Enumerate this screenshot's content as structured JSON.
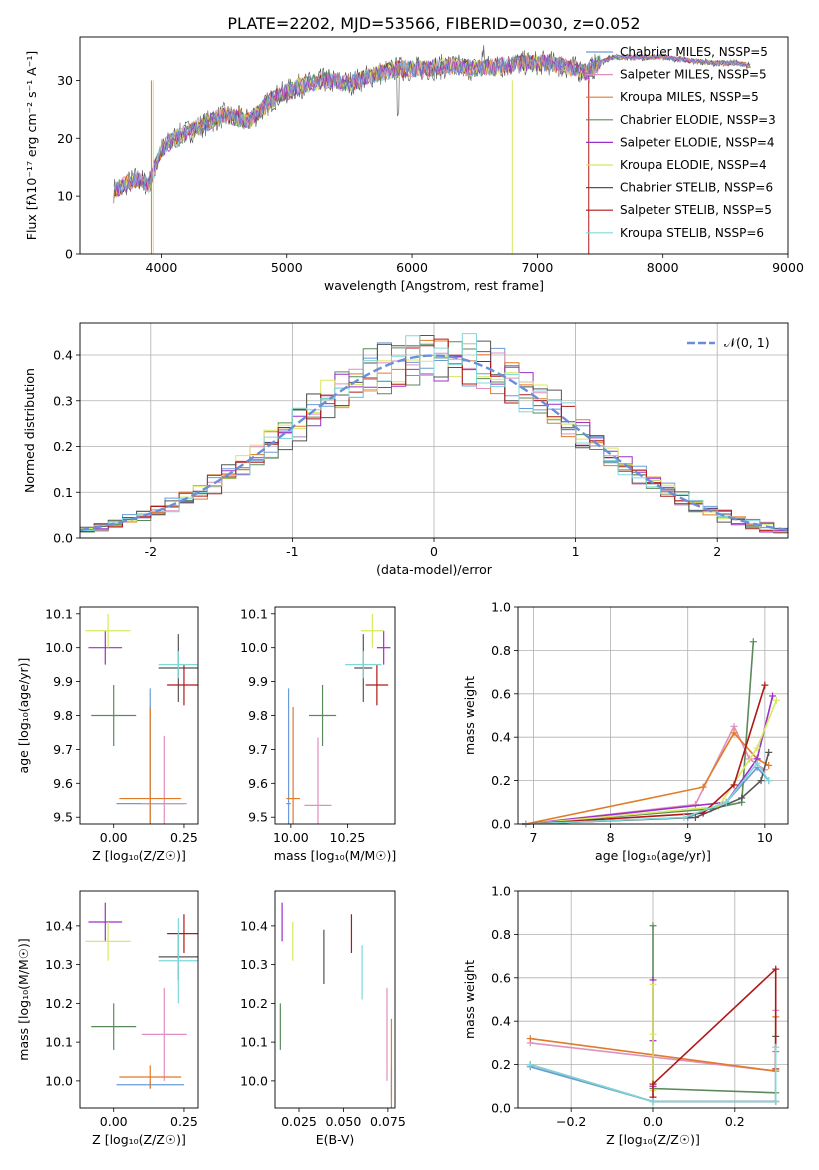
{
  "figure_title": "PLATE=2202, MJD=53566, FIBERID=0030, z=0.052",
  "colors": {
    "chabrier_miles": "#6a9bd8",
    "salpeter_miles": "#e08fc0",
    "kroupa_miles": "#e07b28",
    "chabrier_elodie": "#5a8a5a",
    "salpeter_elodie": "#9b30c8",
    "kroupa_elodie": "#d8e860",
    "chabrier_stelib": "#555555",
    "salpeter_stelib": "#b01818",
    "kroupa_stelib": "#7fd8d8",
    "gaussian": "#6a8fd8"
  },
  "chart_data": [
    {
      "id": "spectrum",
      "type": "line",
      "title": "PLATE=2202, MJD=53566, FIBERID=0030, z=0.052",
      "xlabel": "wavelength [Angstrom, rest frame]",
      "ylabel": "Flux [fλ10⁻¹⁷ erg cm⁻² s⁻¹ A⁻¹]",
      "xlim": [
        3350,
        9000
      ],
      "ylim": [
        0,
        37.5
      ],
      "xticks": [
        4000,
        5000,
        6000,
        7000,
        8000,
        9000
      ],
      "yticks": [
        0,
        10,
        20,
        30
      ],
      "legend": "top-right",
      "x": [
        3620,
        3800,
        3900,
        4000,
        4100,
        4300,
        4500,
        4700,
        4900,
        5100,
        5300,
        5500,
        5700,
        5900,
        6100,
        6300,
        6500,
        6700,
        6900,
        7100,
        7300,
        7400,
        7500,
        7600,
        7800,
        8000,
        8200,
        8400,
        8600,
        8700
      ],
      "series": [
        {
          "name": "Chabrier MILES, N$_{SSP}$=5",
          "display": "Chabrier MILES, NSSP=5"
        },
        {
          "name": "Salpeter MILES, N$_{SSP}$=5",
          "display": "Salpeter MILES, NSSP=5"
        },
        {
          "name": "Kroupa MILES, N$_{SSP}$=5",
          "display": "Kroupa MILES, NSSP=5"
        },
        {
          "name": "Chabrier ELODIE, N$_{SSP}$=3",
          "display": "Chabrier ELODIE, NSSP=3"
        },
        {
          "name": "Salpeter ELODIE, N$_{SSP}$=4",
          "display": "Salpeter ELODIE, NSSP=4"
        },
        {
          "name": "Kroupa ELODIE, N$_{SSP}$=4",
          "display": "Kroupa ELODIE, NSSP=4"
        },
        {
          "name": "Chabrier STELIB, N$_{SSP}$=6",
          "display": "Chabrier STELIB, NSSP=6"
        },
        {
          "name": "Salpeter STELIB, N$_{SSP}$=5",
          "display": "Salpeter STELIB, NSSP=5"
        },
        {
          "name": "Kroupa STELIB, N$_{SSP}$=6",
          "display": "Kroupa STELIB, NSSP=6"
        }
      ],
      "flux": [
        11,
        13,
        12,
        18,
        20,
        22,
        24,
        23,
        27,
        29,
        30,
        29.5,
        31,
        32,
        32,
        32.5,
        32,
        32.5,
        33,
        33,
        32,
        31.5,
        33,
        34,
        34,
        34,
        33.5,
        33,
        33,
        32.5
      ]
    },
    {
      "id": "residuals",
      "type": "bar",
      "xlabel": "(data-model)/error",
      "ylabel": "Normed distribution",
      "xlim": [
        -2.5,
        2.5
      ],
      "ylim": [
        0,
        0.47
      ],
      "xticks": [
        -2,
        -1,
        0,
        1,
        2
      ],
      "yticks": [
        0.0,
        0.1,
        0.2,
        0.3,
        0.4
      ],
      "legend": "top-right",
      "gaussian_label": "𝒩(0, 1)",
      "bin_width": 0.1
    },
    {
      "id": "age_vs_Z",
      "type": "scatter",
      "xlabel": "Z [log₁₀(Z/Z☉)]",
      "ylabel": "age  [log₁₀(age/yr)]",
      "xlim": [
        -0.12,
        0.3
      ],
      "ylim": [
        9.48,
        10.12
      ],
      "xticks": [
        0.0,
        0.25
      ],
      "xticklabels": [
        "0.00",
        "0.25"
      ],
      "yticks": [
        9.5,
        9.6,
        9.7,
        9.8,
        9.9,
        10.0,
        10.1
      ],
      "points": [
        {
          "series": "chabrier_miles",
          "x": 0.13,
          "xerr": 0.12,
          "y": 9.54,
          "yerr": 0.34
        },
        {
          "series": "salpeter_miles",
          "x": 0.18,
          "xerr": 0.08,
          "y": 9.54,
          "yerr": 0.2
        },
        {
          "series": "kroupa_miles",
          "x": 0.13,
          "xerr": 0.11,
          "y": 9.555,
          "yerr": 0.27
        },
        {
          "series": "chabrier_elodie",
          "x": 0.0,
          "xerr": 0.08,
          "y": 9.8,
          "yerr": 0.09
        },
        {
          "series": "salpeter_elodie",
          "x": -0.03,
          "xerr": 0.06,
          "y": 10.0,
          "yerr": 0.05
        },
        {
          "series": "kroupa_elodie",
          "x": -0.02,
          "xerr": 0.08,
          "y": 10.05,
          "yerr": 0.05
        },
        {
          "series": "chabrier_stelib",
          "x": 0.23,
          "xerr": 0.07,
          "y": 9.94,
          "yerr": 0.1
        },
        {
          "series": "salpeter_stelib",
          "x": 0.25,
          "xerr": 0.06,
          "y": 9.89,
          "yerr": 0.06
        },
        {
          "series": "kroupa_stelib",
          "x": 0.23,
          "xerr": 0.07,
          "y": 9.95,
          "yerr": 0.04
        }
      ]
    },
    {
      "id": "age_vs_mass",
      "type": "scatter",
      "xlabel": "mass [log₁₀(M/M☉)]",
      "ylabel": "",
      "xlim": [
        9.93,
        10.46
      ],
      "ylim": [
        9.48,
        10.12
      ],
      "xticks": [
        10.0,
        10.25
      ],
      "xticklabels": [
        "10.00",
        "10.25"
      ],
      "yticks": [
        9.5,
        9.6,
        9.7,
        9.8,
        9.9,
        10.0,
        10.1
      ],
      "points": [
        {
          "series": "chabrier_miles",
          "x": 9.99,
          "xerr": 0.01,
          "y": 9.54,
          "yerr": 0.34
        },
        {
          "series": "salpeter_miles",
          "x": 10.12,
          "xerr": 0.06,
          "y": 9.535,
          "yerr": 0.2
        },
        {
          "series": "kroupa_miles",
          "x": 10.01,
          "xerr": 0.03,
          "y": 9.555,
          "yerr": 0.27
        },
        {
          "series": "chabrier_elodie",
          "x": 10.14,
          "xerr": 0.06,
          "y": 9.8,
          "yerr": 0.09
        },
        {
          "series": "salpeter_elodie",
          "x": 10.41,
          "xerr": 0.03,
          "y": 10.0,
          "yerr": 0.05
        },
        {
          "series": "kroupa_elodie",
          "x": 10.36,
          "xerr": 0.05,
          "y": 10.05,
          "yerr": 0.05
        },
        {
          "series": "chabrier_stelib",
          "x": 10.32,
          "xerr": 0.04,
          "y": 9.94,
          "yerr": 0.1
        },
        {
          "series": "salpeter_stelib",
          "x": 10.38,
          "xerr": 0.05,
          "y": 9.89,
          "yerr": 0.06
        },
        {
          "series": "kroupa_stelib",
          "x": 10.32,
          "xerr": 0.08,
          "y": 9.95,
          "yerr": 0.04
        }
      ]
    },
    {
      "id": "mass_weight_vs_age",
      "type": "line",
      "xlabel": "age  [log₁₀(age/yr)]",
      "ylabel": "mass weight",
      "xlim": [
        6.8,
        10.3
      ],
      "ylim": [
        0,
        1.0
      ],
      "xticks": [
        7,
        8,
        9,
        10
      ],
      "yticks": [
        0.0,
        0.2,
        0.4,
        0.6,
        0.8,
        1.0
      ],
      "grid": true,
      "series": [
        {
          "key": "chabrier_miles",
          "points": [
            [
              6.9,
              0.0
            ],
            [
              9.0,
              0.03
            ],
            [
              9.5,
              0.1
            ],
            [
              9.9,
              0.26
            ],
            [
              10.05,
              0.2
            ]
          ]
        },
        {
          "key": "salpeter_miles",
          "points": [
            [
              6.9,
              0.0
            ],
            [
              9.1,
              0.09
            ],
            [
              9.6,
              0.45
            ],
            [
              9.8,
              0.3
            ],
            [
              10.0,
              0.25
            ]
          ]
        },
        {
          "key": "kroupa_miles",
          "points": [
            [
              6.9,
              0.0
            ],
            [
              9.2,
              0.17
            ],
            [
              9.6,
              0.42
            ],
            [
              9.9,
              0.3
            ],
            [
              10.05,
              0.27
            ]
          ]
        },
        {
          "key": "chabrier_elodie",
          "points": [
            [
              6.9,
              0.0
            ],
            [
              9.3,
              0.07
            ],
            [
              9.7,
              0.1
            ],
            [
              9.85,
              0.84
            ]
          ]
        },
        {
          "key": "salpeter_elodie",
          "points": [
            [
              6.9,
              0.0
            ],
            [
              9.5,
              0.1
            ],
            [
              9.9,
              0.3
            ],
            [
              10.1,
              0.59
            ]
          ]
        },
        {
          "key": "kroupa_elodie",
          "points": [
            [
              6.9,
              0.0
            ],
            [
              9.4,
              0.08
            ],
            [
              9.9,
              0.35
            ],
            [
              10.15,
              0.57
            ]
          ]
        },
        {
          "key": "chabrier_stelib",
          "points": [
            [
              6.9,
              0.0
            ],
            [
              9.1,
              0.03
            ],
            [
              9.7,
              0.12
            ],
            [
              9.95,
              0.2
            ],
            [
              10.05,
              0.33
            ]
          ]
        },
        {
          "key": "salpeter_stelib",
          "points": [
            [
              6.9,
              0.0
            ],
            [
              9.2,
              0.05
            ],
            [
              9.6,
              0.18
            ],
            [
              10.0,
              0.64
            ]
          ]
        },
        {
          "key": "kroupa_stelib",
          "points": [
            [
              6.9,
              0.0
            ],
            [
              8.95,
              0.03
            ],
            [
              9.5,
              0.1
            ],
            [
              9.9,
              0.28
            ],
            [
              10.05,
              0.2
            ]
          ]
        }
      ]
    },
    {
      "id": "mass_vs_Z",
      "type": "scatter",
      "xlabel": "Z [log₁₀(Z/Z☉)]",
      "ylabel": "mass [log₁₀(M/M☉)]",
      "xlim": [
        -0.12,
        0.3
      ],
      "ylim": [
        9.93,
        10.49
      ],
      "xticks": [
        0.0,
        0.25
      ],
      "xticklabels": [
        "0.00",
        "0.25"
      ],
      "yticks": [
        10.0,
        10.1,
        10.2,
        10.3,
        10.4
      ],
      "points": [
        {
          "series": "chabrier_miles",
          "x": 0.13,
          "xerr": 0.12,
          "y": 9.99,
          "yerr": 0.01
        },
        {
          "series": "salpeter_miles",
          "x": 0.18,
          "xerr": 0.08,
          "y": 10.12,
          "yerr": 0.12
        },
        {
          "series": "kroupa_miles",
          "x": 0.13,
          "xerr": 0.11,
          "y": 10.01,
          "yerr": 0.03
        },
        {
          "series": "chabrier_elodie",
          "x": 0.0,
          "xerr": 0.08,
          "y": 10.14,
          "yerr": 0.06
        },
        {
          "series": "salpeter_elodie",
          "x": -0.03,
          "xerr": 0.06,
          "y": 10.41,
          "yerr": 0.05
        },
        {
          "series": "kroupa_elodie",
          "x": -0.02,
          "xerr": 0.08,
          "y": 10.36,
          "yerr": 0.05
        },
        {
          "series": "chabrier_stelib",
          "x": 0.23,
          "xerr": 0.07,
          "y": 10.32,
          "yerr": 0.06
        },
        {
          "series": "salpeter_stelib",
          "x": 0.25,
          "xerr": 0.06,
          "y": 10.38,
          "yerr": 0.05
        },
        {
          "series": "kroupa_stelib",
          "x": 0.23,
          "xerr": 0.07,
          "y": 10.31,
          "yerr": 0.11
        }
      ]
    },
    {
      "id": "mass_vs_ebv",
      "type": "scatter",
      "xlabel": "E(B-V)",
      "ylabel": "",
      "xlim": [
        0.0115,
        0.079
      ],
      "ylim": [
        9.93,
        10.49
      ],
      "xticks": [
        0.025,
        0.05,
        0.075
      ],
      "xticklabels": [
        "0.025",
        "0.050",
        "0.075"
      ],
      "yticks": [
        10.0,
        10.1,
        10.2,
        10.3,
        10.4
      ],
      "points": [
        {
          "series": "chabrier_miles",
          "x": 0.077,
          "xerr": 0.0,
          "y": 9.99,
          "yerr": 0.04
        },
        {
          "series": "salpeter_miles",
          "x": 0.0745,
          "xerr": 0.0,
          "y": 10.12,
          "yerr": 0.12
        },
        {
          "series": "kroupa_miles",
          "x": 0.077,
          "xerr": 0.0,
          "y": 10.01,
          "yerr": 0.15
        },
        {
          "series": "chabrier_elodie",
          "x": 0.0145,
          "xerr": 0.0,
          "y": 10.14,
          "yerr": 0.06
        },
        {
          "series": "salpeter_elodie",
          "x": 0.0155,
          "xerr": 0.0,
          "y": 10.41,
          "yerr": 0.05
        },
        {
          "series": "kroupa_elodie",
          "x": 0.0215,
          "xerr": 0.0,
          "y": 10.36,
          "yerr": 0.05
        },
        {
          "series": "chabrier_stelib",
          "x": 0.039,
          "xerr": 0.0,
          "y": 10.32,
          "yerr": 0.07
        },
        {
          "series": "salpeter_stelib",
          "x": 0.0545,
          "xerr": 0.0,
          "y": 10.38,
          "yerr": 0.05
        },
        {
          "series": "kroupa_stelib",
          "x": 0.0605,
          "xerr": 0.0,
          "y": 10.28,
          "yerr": 0.07
        }
      ]
    },
    {
      "id": "mass_weight_vs_Z",
      "type": "line",
      "xlabel": "Z [log₁₀(Z/Z☉)]",
      "ylabel": "mass weight",
      "xlim": [
        -0.33,
        0.33
      ],
      "ylim": [
        0,
        1.0
      ],
      "xticks": [
        -0.2,
        0.0,
        0.2
      ],
      "xticklabels": [
        "−0.2",
        "0.0",
        "0.2"
      ],
      "yticks": [
        0.0,
        0.2,
        0.4,
        0.6,
        0.8,
        1.0
      ],
      "grid": true,
      "series": [
        {
          "key": "chabrier_miles",
          "points": [
            [
              -0.3,
              0.19
            ],
            [
              0.0,
              0.03
            ],
            [
              0.3,
              0.03
            ],
            [
              0.3,
              0.26
            ]
          ]
        },
        {
          "key": "salpeter_miles",
          "points": [
            [
              -0.3,
              0.3
            ],
            [
              0.3,
              0.17
            ],
            [
              0.3,
              0.45
            ]
          ]
        },
        {
          "key": "kroupa_miles",
          "points": [
            [
              -0.3,
              0.32
            ],
            [
              0.3,
              0.17
            ],
            [
              0.3,
              0.42
            ]
          ]
        },
        {
          "key": "chabrier_elodie",
          "points": [
            [
              0.0,
              0.84
            ],
            [
              0.0,
              0.09
            ],
            [
              0.3,
              0.07
            ]
          ]
        },
        {
          "key": "salpeter_elodie",
          "points": [
            [
              0.0,
              0.59
            ],
            [
              0.0,
              0.1
            ],
            [
              0.0,
              0.31
            ]
          ]
        },
        {
          "key": "kroupa_elodie",
          "points": [
            [
              0.0,
              0.57
            ],
            [
              0.0,
              0.08
            ],
            [
              0.0,
              0.34
            ]
          ]
        },
        {
          "key": "chabrier_stelib",
          "points": [
            [
              -0.3,
              0.2
            ],
            [
              0.0,
              0.03
            ],
            [
              0.3,
              0.03
            ],
            [
              0.3,
              0.33
            ]
          ]
        },
        {
          "key": "salpeter_stelib",
          "points": [
            [
              0.0,
              0.05
            ],
            [
              0.0,
              0.11
            ],
            [
              0.3,
              0.64
            ],
            [
              0.3,
              0.18
            ]
          ]
        },
        {
          "key": "kroupa_stelib",
          "points": [
            [
              -0.3,
              0.2
            ],
            [
              0.0,
              0.03
            ],
            [
              0.3,
              0.03
            ],
            [
              0.3,
              0.28
            ]
          ]
        }
      ]
    }
  ]
}
